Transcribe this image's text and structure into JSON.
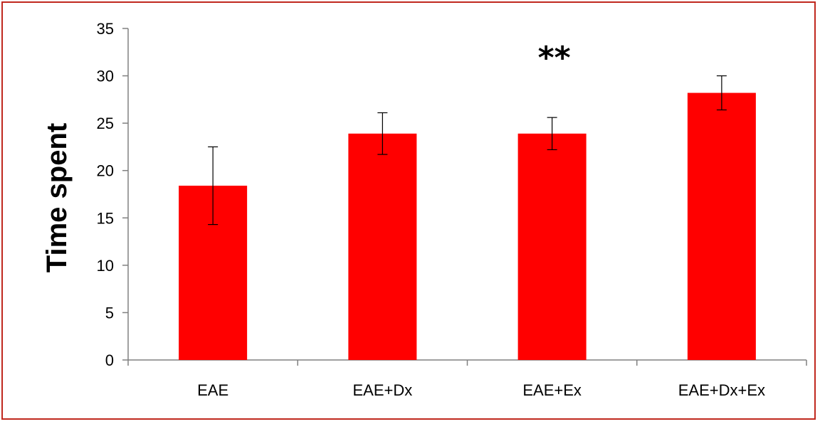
{
  "chart_data": {
    "type": "bar",
    "categories": [
      "EAE",
      "EAE+Dx",
      "EAE+Ex",
      "EAE+Dx+Ex"
    ],
    "values": [
      18.4,
      23.9,
      23.9,
      28.2
    ],
    "errors": [
      4.1,
      2.2,
      1.7,
      1.8
    ],
    "title": "",
    "xlabel": "",
    "ylabel": "Time spent",
    "ylim": [
      0,
      35
    ],
    "yticks": [
      "0",
      "5",
      "10",
      "15",
      "20",
      "25",
      "30",
      "35"
    ],
    "grid": false,
    "legend": "none",
    "annotations": [
      {
        "text": "**",
        "category": "EAE+Ex"
      }
    ],
    "colors": {
      "bar": "#ff0000",
      "border": "#c0281e",
      "axis": "#808080"
    }
  }
}
